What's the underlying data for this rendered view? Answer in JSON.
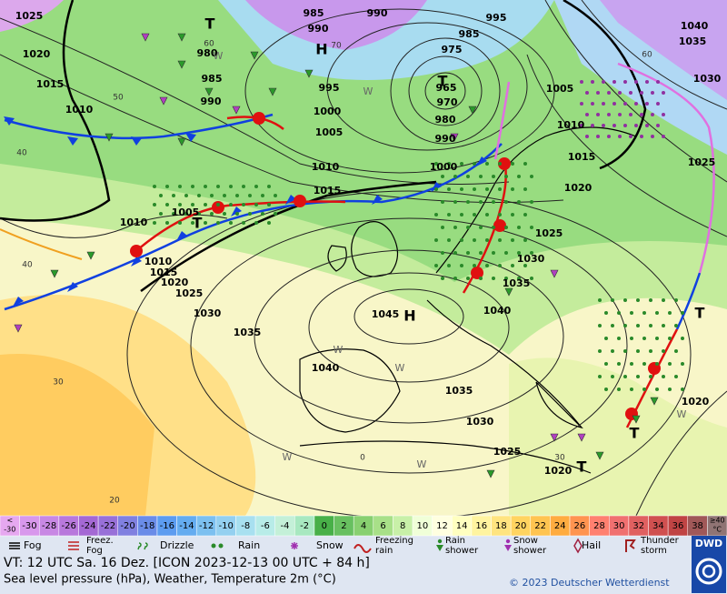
{
  "map": {
    "pressure_labels": [
      "1025",
      "1020",
      "1015",
      "1010",
      "985",
      "990",
      "990",
      "995",
      "985",
      "980",
      "985",
      "990",
      "975",
      "965",
      "970",
      "980",
      "990",
      "995",
      "1000",
      "1005",
      "1010",
      "1015",
      "1000",
      "1005",
      "1010",
      "1015",
      "1020",
      "1025",
      "1030",
      "1035",
      "1040",
      "1025",
      "1030",
      "1035",
      "1040",
      "1045",
      "1040",
      "1035",
      "1030",
      "1025",
      "1020",
      "1015",
      "1010",
      "1010",
      "1005",
      "1035",
      "1030",
      "1025",
      "1020",
      "1020"
    ],
    "centers": [
      "H",
      "H",
      "T",
      "T",
      "T",
      "T",
      "T",
      "T"
    ],
    "grid_labels": [
      "60",
      "70",
      "50",
      "40",
      "40",
      "30",
      "20",
      "0",
      "60",
      "30"
    ],
    "wind_marks": [
      "W",
      "W",
      "W",
      "W",
      "W",
      "W",
      "W"
    ]
  },
  "color_scale": {
    "cells": [
      {
        "lines": [
          "<",
          "-30"
        ],
        "color": "#e6a8f0"
      },
      {
        "lines": [
          "-30"
        ],
        "color": "#d898ec"
      },
      {
        "lines": [
          "-28"
        ],
        "color": "#c888e4"
      },
      {
        "lines": [
          "-26"
        ],
        "color": "#b878dc"
      },
      {
        "lines": [
          "-24"
        ],
        "color": "#a468d4"
      },
      {
        "lines": [
          "-22"
        ],
        "color": "#9870d8"
      },
      {
        "lines": [
          "-20"
        ],
        "color": "#8080e0"
      },
      {
        "lines": [
          "-18"
        ],
        "color": "#6a8ce8"
      },
      {
        "lines": [
          "-16"
        ],
        "color": "#5c9cf0"
      },
      {
        "lines": [
          "-14"
        ],
        "color": "#64acf0"
      },
      {
        "lines": [
          "-12"
        ],
        "color": "#7cc0f0"
      },
      {
        "lines": [
          "-10"
        ],
        "color": "#94d0f0"
      },
      {
        "lines": [
          "-8"
        ],
        "color": "#a8e0f0"
      },
      {
        "lines": [
          "-6"
        ],
        "color": "#b8ece8"
      },
      {
        "lines": [
          "-4"
        ],
        "color": "#c4f0d8"
      },
      {
        "lines": [
          "-2"
        ],
        "color": "#a8e8c0"
      },
      {
        "lines": [
          "0"
        ],
        "color": "#48b048"
      },
      {
        "lines": [
          "2"
        ],
        "color": "#68c060"
      },
      {
        "lines": [
          "4"
        ],
        "color": "#88d070"
      },
      {
        "lines": [
          "6"
        ],
        "color": "#a8e088"
      },
      {
        "lines": [
          "8"
        ],
        "color": "#c8f0a8"
      },
      {
        "lines": [
          "10"
        ],
        "color": "#f0ffd8"
      },
      {
        "lines": [
          "12"
        ],
        "color": "#ffffe0"
      },
      {
        "lines": [
          "14"
        ],
        "color": "#ffffc0"
      },
      {
        "lines": [
          "16"
        ],
        "color": "#fff4a0"
      },
      {
        "lines": [
          "18"
        ],
        "color": "#ffe480"
      },
      {
        "lines": [
          "20"
        ],
        "color": "#ffd460"
      },
      {
        "lines": [
          "22"
        ],
        "color": "#ffc450"
      },
      {
        "lines": [
          "24"
        ],
        "color": "#ffac40"
      },
      {
        "lines": [
          "26"
        ],
        "color": "#ff9450"
      },
      {
        "lines": [
          "28"
        ],
        "color": "#ff8070"
      },
      {
        "lines": [
          "30"
        ],
        "color": "#f07070"
      },
      {
        "lines": [
          "32"
        ],
        "color": "#e06060"
      },
      {
        "lines": [
          "34"
        ],
        "color": "#d05050"
      },
      {
        "lines": [
          "36"
        ],
        "color": "#c04444"
      },
      {
        "lines": [
          "38"
        ],
        "color": "#a05858"
      },
      {
        "lines": [
          "≥40",
          "°C"
        ],
        "color": "#907474"
      }
    ]
  },
  "legend": [
    {
      "lines": [
        "Fog"
      ]
    },
    {
      "lines": [
        "Freez.",
        "Fog"
      ]
    },
    {
      "lines": [
        "Drizzle"
      ]
    },
    {
      "lines": [
        "Rain"
      ]
    },
    {
      "lines": [
        "Snow"
      ]
    },
    {
      "lines": [
        "Freezing",
        "rain"
      ]
    },
    {
      "lines": [
        "Rain",
        "shower"
      ]
    },
    {
      "lines": [
        "Snow",
        "shower"
      ]
    },
    {
      "lines": [
        "Hail"
      ]
    },
    {
      "lines": [
        "Thunder",
        "storm"
      ]
    }
  ],
  "footer": {
    "valid_time": "VT: 12 UTC Sa.  16 Dez. [ICON 2023-12-13  00 UTC + 84 h]",
    "description": "Sea level pressure (hPa), Weather, Temperature 2m (°C)",
    "copyright": "© 2023 Deutscher Wetterdienst",
    "logo": "DWD"
  }
}
